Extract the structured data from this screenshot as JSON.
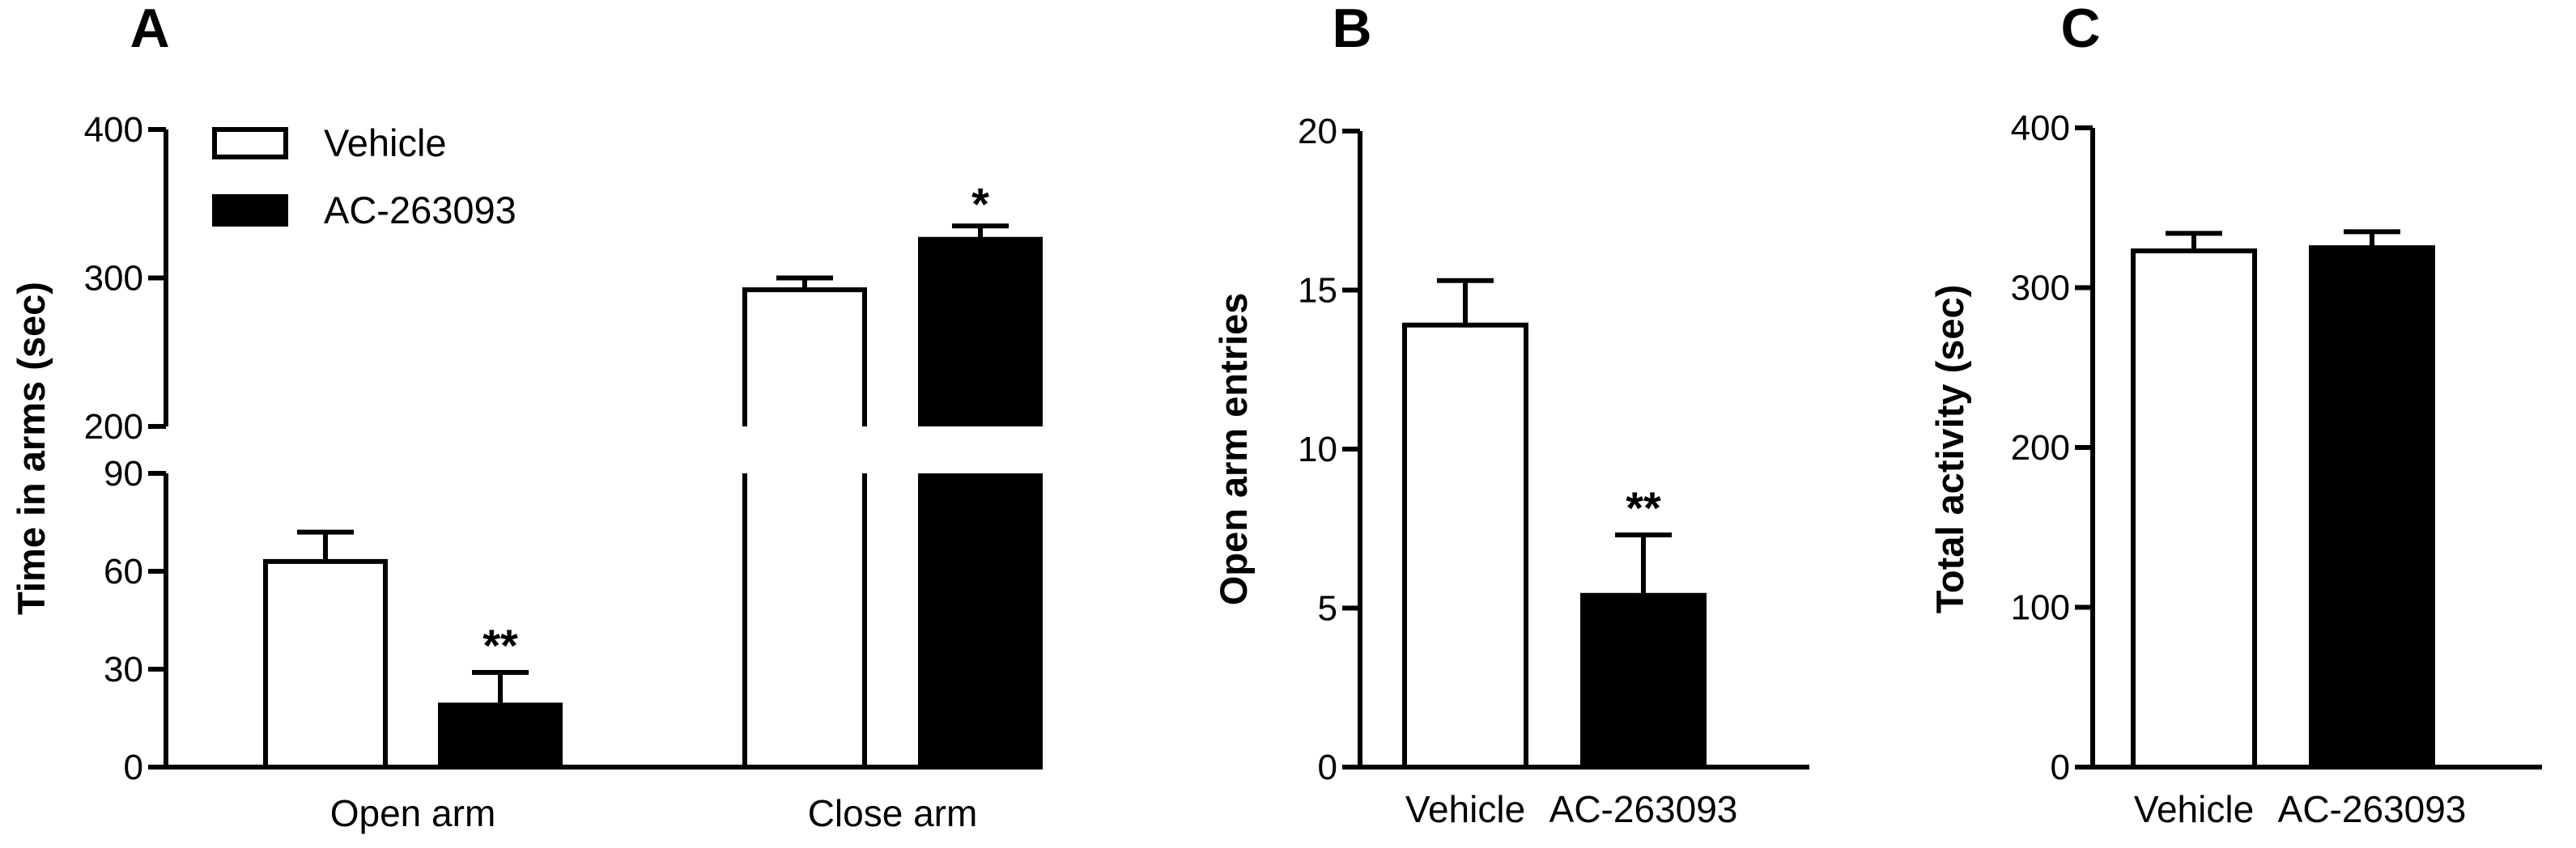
{
  "chart_data": [
    {
      "panel": "A",
      "type": "bar",
      "ylabel": "Time in arms (sec)",
      "categories": [
        "Open arm",
        "Close arm"
      ],
      "series": [
        {
          "name": "Vehicle",
          "fill": "#ffffff",
          "values": [
            63,
            292
          ],
          "errors": [
            9,
            8
          ]
        },
        {
          "name": "AC-263093",
          "fill": "#000000",
          "values": [
            19,
            326
          ],
          "errors": [
            10,
            9
          ]
        }
      ],
      "significance": [
        [
          "",
          "**"
        ],
        [
          "",
          "*"
        ]
      ],
      "axis_break": true,
      "lower_segment": {
        "ylim": [
          0,
          90
        ],
        "ticks": [
          "0",
          "30",
          "60",
          "90"
        ]
      },
      "upper_segment": {
        "ylim": [
          200,
          400
        ],
        "ticks": [
          "200",
          "300",
          "400"
        ]
      },
      "legend_position": "top-left"
    },
    {
      "panel": "B",
      "type": "bar",
      "ylabel": "Open arm entries",
      "categories": [
        "Vehicle",
        "AC-263093"
      ],
      "values": [
        13.9,
        5.4
      ],
      "errors": [
        1.4,
        1.9
      ],
      "fills": [
        "#ffffff",
        "#000000"
      ],
      "significance": [
        "",
        "**"
      ],
      "ylim": [
        0,
        20
      ],
      "ticks": [
        "0",
        "5",
        "10",
        "15",
        "20"
      ]
    },
    {
      "panel": "C",
      "type": "bar",
      "ylabel": "Total activity (sec)",
      "categories": [
        "Vehicle",
        "AC-263093"
      ],
      "values": [
        323,
        325
      ],
      "errors": [
        11,
        10
      ],
      "fills": [
        "#ffffff",
        "#000000"
      ],
      "significance": [
        "",
        ""
      ],
      "ylim": [
        0,
        400
      ],
      "ticks": [
        "0",
        "100",
        "200",
        "300",
        "400"
      ]
    }
  ]
}
